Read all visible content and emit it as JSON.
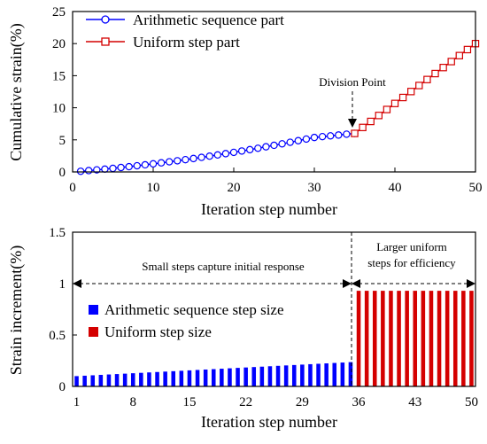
{
  "colors": {
    "blue": "#0000ff",
    "red": "#d40000",
    "black": "#000000"
  },
  "chart_data": [
    {
      "type": "line",
      "xlabel": "Iteration step number",
      "ylabel": "Cumulative strain(%)",
      "xlim": [
        0,
        50
      ],
      "ylim": [
        0,
        25
      ],
      "xticks": [
        0,
        10,
        20,
        30,
        40,
        50
      ],
      "yticks": [
        0,
        5,
        10,
        15,
        20,
        25
      ],
      "grid": false,
      "legend_position": "top-left",
      "series": [
        {
          "name": "Arithmetic sequence part",
          "color": "#0000ff",
          "marker": "circle",
          "x": [
            1,
            2,
            3,
            4,
            5,
            6,
            7,
            8,
            9,
            10,
            11,
            12,
            13,
            14,
            15,
            16,
            17,
            18,
            19,
            20,
            21,
            22,
            23,
            24,
            25,
            26,
            27,
            28,
            29,
            30,
            31,
            32,
            33,
            34,
            35
          ],
          "y": [
            0.1,
            0.21,
            0.32,
            0.44,
            0.56,
            0.69,
            0.82,
            0.96,
            1.11,
            1.26,
            1.42,
            1.58,
            1.74,
            1.91,
            2.09,
            2.27,
            2.46,
            2.65,
            2.85,
            3.05,
            3.26,
            3.47,
            3.69,
            3.92,
            4.15,
            4.38,
            4.62,
            4.87,
            5.12,
            5.37,
            5.5,
            5.62,
            5.75,
            5.88,
            6.0
          ]
        },
        {
          "name": "Uniform step part",
          "color": "#d40000",
          "marker": "square",
          "x": [
            35,
            36,
            37,
            38,
            39,
            40,
            41,
            42,
            43,
            44,
            45,
            46,
            47,
            48,
            49,
            50
          ],
          "y": [
            6.0,
            6.93,
            7.87,
            8.8,
            9.73,
            10.67,
            11.6,
            12.53,
            13.47,
            14.4,
            15.33,
            16.27,
            17.2,
            18.13,
            19.07,
            20.0
          ]
        }
      ],
      "annotations": [
        {
          "text": "Division Point",
          "x": 35,
          "y": 6.0
        }
      ]
    },
    {
      "type": "bar",
      "xlabel": "Iteration step number",
      "ylabel": "Strain increment(%)",
      "xlim": [
        1,
        50
      ],
      "ylim": [
        0,
        1.5
      ],
      "xticks": [
        1,
        8,
        15,
        22,
        29,
        36,
        43,
        50
      ],
      "yticks": [
        "0",
        "0.5",
        "1",
        "1.5"
      ],
      "grid": false,
      "legend_position": "center-left",
      "series": [
        {
          "name": "Arithmetic sequence step size",
          "color": "#0000ff",
          "x": [
            1,
            2,
            3,
            4,
            5,
            6,
            7,
            8,
            9,
            10,
            11,
            12,
            13,
            14,
            15,
            16,
            17,
            18,
            19,
            20,
            21,
            22,
            23,
            24,
            25,
            26,
            27,
            28,
            29,
            30,
            31,
            32,
            33,
            34,
            35
          ],
          "values": [
            0.1,
            0.104,
            0.108,
            0.112,
            0.116,
            0.12,
            0.124,
            0.128,
            0.132,
            0.136,
            0.14,
            0.144,
            0.148,
            0.152,
            0.156,
            0.16,
            0.164,
            0.168,
            0.172,
            0.176,
            0.18,
            0.184,
            0.188,
            0.192,
            0.196,
            0.2,
            0.204,
            0.208,
            0.212,
            0.216,
            0.22,
            0.224,
            0.228,
            0.232,
            0.236
          ]
        },
        {
          "name": "Uniform step size",
          "color": "#d40000",
          "x": [
            36,
            37,
            38,
            39,
            40,
            41,
            42,
            43,
            44,
            45,
            46,
            47,
            48,
            49,
            50
          ],
          "values": [
            0.93,
            0.93,
            0.93,
            0.93,
            0.93,
            0.93,
            0.93,
            0.93,
            0.93,
            0.93,
            0.93,
            0.93,
            0.93,
            0.93,
            0.93
          ]
        }
      ],
      "annotations": [
        {
          "text": "Small steps capture initial response"
        },
        {
          "text": "Larger uniform"
        },
        {
          "text": "steps for efficiency"
        }
      ]
    }
  ]
}
